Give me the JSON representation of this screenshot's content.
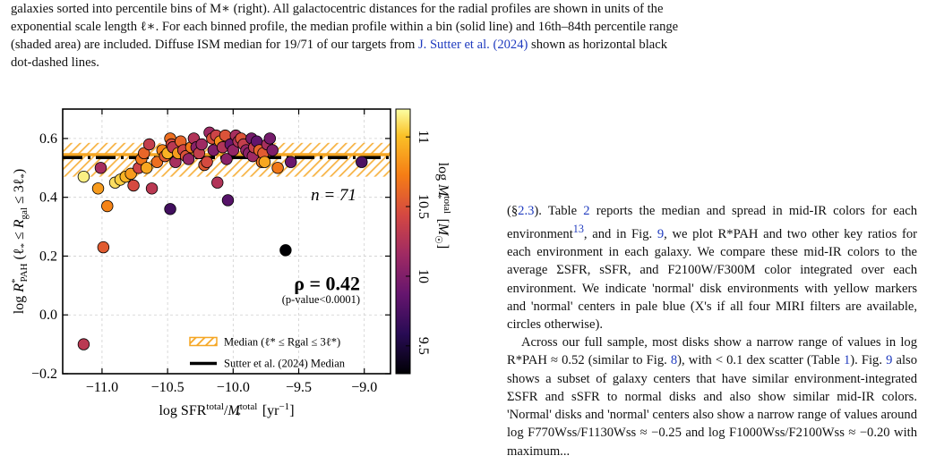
{
  "caption": {
    "line1": "galaxies sorted into percentile bins of M∗ (right). All galactocentric distances for the radial profiles are shown in units of the",
    "line2": "exponential scale length ℓ∗. For each binned profile, the median profile within a bin (solid line) and 16th–84th percentile range",
    "line3a": "(shaded area) are included. Diffuse ISM median for 19/71 of our targets from ",
    "cite": "J. Sutter et al. (2024)",
    "line3b": " shown as horizontal black",
    "line4": "dot-dashed lines."
  },
  "body_text": {
    "p1a": "(§",
    "p1ref1": "2.3",
    "p1b": "). Table ",
    "p1ref2": "2",
    "p1c": " reports the median and spread in mid-IR colors for each environment",
    "p1fn": "13",
    "p1d": ", and in Fig. ",
    "p1ref3": "9",
    "p1e": ", we plot R*PAH and two other key ratios for each environment in each galaxy. We compare these mid-IR colors to the average ΣSFR, sSFR, and F2100W/F300M color integrated over each environment. We indicate 'normal' disk environments with yellow markers and 'normal' centers in pale blue (X's if all four MIRI filters are available, circles otherwise).",
    "p2a": "Across our full sample, most disks show a narrow range of values in log R*PAH ≈ 0.52 (similar to Fig. ",
    "p2ref1": "8",
    "p2b": "), with < 0.1 dex scatter (Table ",
    "p2ref2": "1",
    "p2c": "). Fig. ",
    "p2ref3": "9",
    "p2d": " also shows a subset of galaxy centers that have similar environment-integrated ΣSFR and sSFR to normal disks and also show similar mid-IR colors. 'Normal' disks and 'normal' centers also show a narrow range of values around log F770Wss/F1130Wss ≈ −0.25 and log F1000Wss/F2100Wss ≈ −0.20 with maximum..."
  },
  "chart_data": {
    "type": "scatter",
    "xlabel": "log SFR^total/M*^total [yr^-1]",
    "ylabel": "log R*PAH (ℓ* ≤ Rgal ≤ 3ℓ*)",
    "xlim": [
      -11.3,
      -8.8
    ],
    "ylim": [
      -0.2,
      0.7
    ],
    "xticks": [
      "−11.0",
      "−10.5",
      "−10.0",
      "−9.5",
      "−9.0"
    ],
    "yticks": [
      "−0.2",
      "0.0",
      "0.2",
      "0.4",
      "0.6"
    ],
    "colorbar": {
      "label": "log M*^total [M☉]",
      "range": [
        9.3,
        11.2
      ],
      "ticks": [
        "9.5",
        "10",
        "10.5",
        "11"
      ],
      "colormap": "inferno"
    },
    "median_band": {
      "median": 0.545,
      "low": 0.47,
      "high": 0.585,
      "color": "#f5a623"
    },
    "sutter_median": 0.535,
    "annotation_n": "n = 71",
    "rho": "ρ = 0.42",
    "pvalue": "(p-value<0.0001)",
    "legend": [
      {
        "label": "Median (ℓ* ≤ Rgal ≤ 3ℓ*)",
        "style": "orange-band"
      },
      {
        "label": "Sutter et al. (2024) Median",
        "style": "black-dashed"
      }
    ],
    "points": [
      {
        "x": -11.14,
        "y": 0.47,
        "m": 11.15
      },
      {
        "x": -11.14,
        "y": -0.1,
        "m": 10.3
      },
      {
        "x": -11.03,
        "y": 0.43,
        "m": 10.85
      },
      {
        "x": -11.01,
        "y": 0.5,
        "m": 10.2
      },
      {
        "x": -10.99,
        "y": 0.23,
        "m": 10.55
      },
      {
        "x": -10.96,
        "y": 0.37,
        "m": 10.75
      },
      {
        "x": -10.9,
        "y": 0.45,
        "m": 11.1
      },
      {
        "x": -10.86,
        "y": 0.46,
        "m": 11.05
      },
      {
        "x": -10.82,
        "y": 0.47,
        "m": 10.95
      },
      {
        "x": -10.78,
        "y": 0.48,
        "m": 10.85
      },
      {
        "x": -10.76,
        "y": 0.44,
        "m": 10.45
      },
      {
        "x": -10.72,
        "y": 0.5,
        "m": 10.4
      },
      {
        "x": -10.7,
        "y": 0.53,
        "m": 10.7
      },
      {
        "x": -10.68,
        "y": 0.55,
        "m": 10.6
      },
      {
        "x": -10.66,
        "y": 0.5,
        "m": 10.9
      },
      {
        "x": -10.64,
        "y": 0.58,
        "m": 10.35
      },
      {
        "x": -10.62,
        "y": 0.43,
        "m": 10.3
      },
      {
        "x": -10.58,
        "y": 0.52,
        "m": 10.65
      },
      {
        "x": -10.54,
        "y": 0.56,
        "m": 10.75
      },
      {
        "x": -10.52,
        "y": 0.54,
        "m": 10.55
      },
      {
        "x": -10.5,
        "y": 0.55,
        "m": 10.95
      },
      {
        "x": -10.48,
        "y": 0.6,
        "m": 10.65
      },
      {
        "x": -10.48,
        "y": 0.36,
        "m": 9.7
      },
      {
        "x": -10.47,
        "y": 0.58,
        "m": 10.45
      },
      {
        "x": -10.46,
        "y": 0.57,
        "m": 10.3
      },
      {
        "x": -10.44,
        "y": 0.52,
        "m": 10.2
      },
      {
        "x": -10.42,
        "y": 0.55,
        "m": 10.85
      },
      {
        "x": -10.4,
        "y": 0.59,
        "m": 10.6
      },
      {
        "x": -10.38,
        "y": 0.56,
        "m": 10.4
      },
      {
        "x": -10.36,
        "y": 0.54,
        "m": 10.5
      },
      {
        "x": -10.34,
        "y": 0.53,
        "m": 10.1
      },
      {
        "x": -10.32,
        "y": 0.57,
        "m": 10.7
      },
      {
        "x": -10.3,
        "y": 0.6,
        "m": 10.25
      },
      {
        "x": -10.28,
        "y": 0.57,
        "m": 10.05
      },
      {
        "x": -10.26,
        "y": 0.55,
        "m": 10.35
      },
      {
        "x": -10.24,
        "y": 0.58,
        "m": 10.15
      },
      {
        "x": -10.22,
        "y": 0.51,
        "m": 10.55
      },
      {
        "x": -10.2,
        "y": 0.52,
        "m": 10.45
      },
      {
        "x": -10.18,
        "y": 0.62,
        "m": 10.15
      },
      {
        "x": -10.16,
        "y": 0.6,
        "m": 10.5
      },
      {
        "x": -10.15,
        "y": 0.56,
        "m": 10.0
      },
      {
        "x": -10.13,
        "y": 0.61,
        "m": 10.4
      },
      {
        "x": -10.12,
        "y": 0.45,
        "m": 10.25
      },
      {
        "x": -10.1,
        "y": 0.59,
        "m": 10.8
      },
      {
        "x": -10.08,
        "y": 0.57,
        "m": 10.25
      },
      {
        "x": -10.06,
        "y": 0.61,
        "m": 10.5
      },
      {
        "x": -10.05,
        "y": 0.53,
        "m": 10.05
      },
      {
        "x": -10.04,
        "y": 0.39,
        "m": 9.8
      },
      {
        "x": -10.02,
        "y": 0.58,
        "m": 9.9
      },
      {
        "x": -10.0,
        "y": 0.56,
        "m": 10.1
      },
      {
        "x": -9.98,
        "y": 0.61,
        "m": 10.2
      },
      {
        "x": -9.96,
        "y": 0.59,
        "m": 10.25
      },
      {
        "x": -9.94,
        "y": 0.6,
        "m": 10.5
      },
      {
        "x": -9.92,
        "y": 0.58,
        "m": 10.35
      },
      {
        "x": -9.9,
        "y": 0.56,
        "m": 10.1
      },
      {
        "x": -9.88,
        "y": 0.55,
        "m": 10.05
      },
      {
        "x": -9.86,
        "y": 0.6,
        "m": 9.95
      },
      {
        "x": -9.85,
        "y": 0.54,
        "m": 10.15
      },
      {
        "x": -9.84,
        "y": 0.57,
        "m": 10.35
      },
      {
        "x": -9.82,
        "y": 0.59,
        "m": 9.85
      },
      {
        "x": -9.8,
        "y": 0.56,
        "m": 10.6
      },
      {
        "x": -9.78,
        "y": 0.52,
        "m": 10.65
      },
      {
        "x": -9.77,
        "y": 0.55,
        "m": 10.55
      },
      {
        "x": -9.76,
        "y": 0.52,
        "m": 10.9
      },
      {
        "x": -9.74,
        "y": 0.58,
        "m": 10.2
      },
      {
        "x": -9.72,
        "y": 0.6,
        "m": 9.95
      },
      {
        "x": -9.7,
        "y": 0.56,
        "m": 10.0
      },
      {
        "x": -9.66,
        "y": 0.5,
        "m": 10.7
      },
      {
        "x": -9.6,
        "y": 0.22,
        "m": 9.3
      },
      {
        "x": -9.56,
        "y": 0.52,
        "m": 9.9
      },
      {
        "x": -9.02,
        "y": 0.52,
        "m": 9.75
      }
    ]
  }
}
